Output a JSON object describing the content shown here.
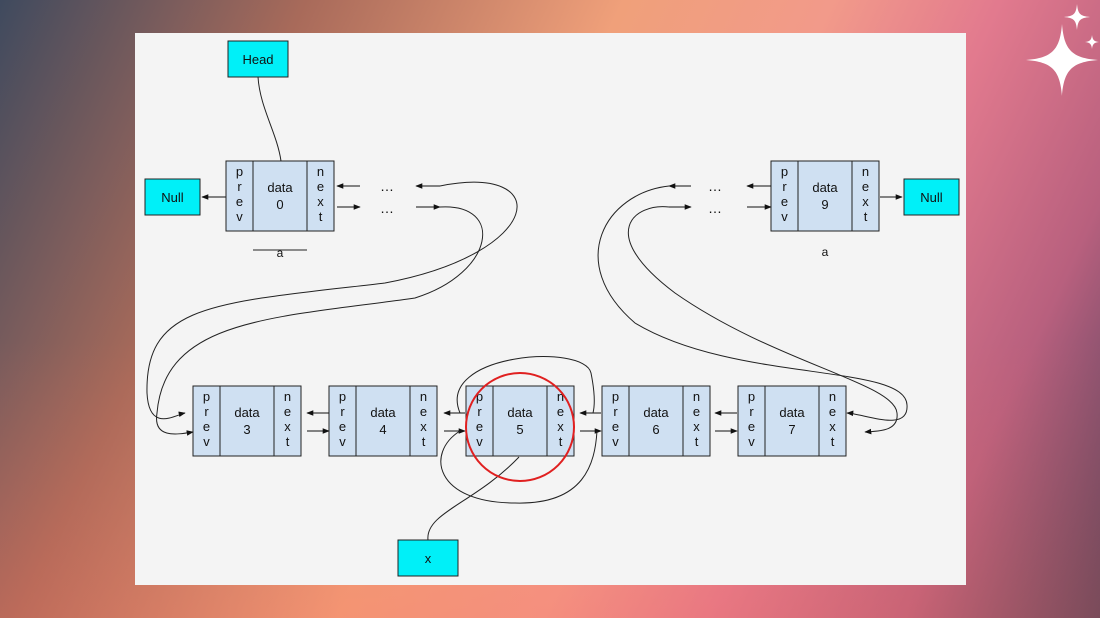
{
  "labels": {
    "head": "Head",
    "null_left": "Null",
    "null_right": "Null",
    "x": "x",
    "ellipsis": "…",
    "caption_a_left": "a",
    "caption_a_right": "a"
  },
  "node_parts": {
    "prev": [
      "p",
      "r",
      "e",
      "v"
    ],
    "next": [
      "n",
      "e",
      "x",
      "t"
    ]
  },
  "nodes": [
    {
      "id": "node-0",
      "data_label": "data",
      "index": "0"
    },
    {
      "id": "node-9",
      "data_label": "data",
      "index": "9"
    },
    {
      "id": "node-3",
      "data_label": "data",
      "index": "3"
    },
    {
      "id": "node-4",
      "data_label": "data",
      "index": "4"
    },
    {
      "id": "node-5",
      "data_label": "data",
      "index": "5"
    },
    {
      "id": "node-6",
      "data_label": "data",
      "index": "6"
    },
    {
      "id": "node-7",
      "data_label": "data",
      "index": "7"
    }
  ],
  "colors": {
    "node_fill": "#cfe0f2",
    "label_box_fill": "#00f0f8",
    "stroke": "#222222",
    "highlight": "#e02020",
    "canvas": "#f4f4f4"
  }
}
